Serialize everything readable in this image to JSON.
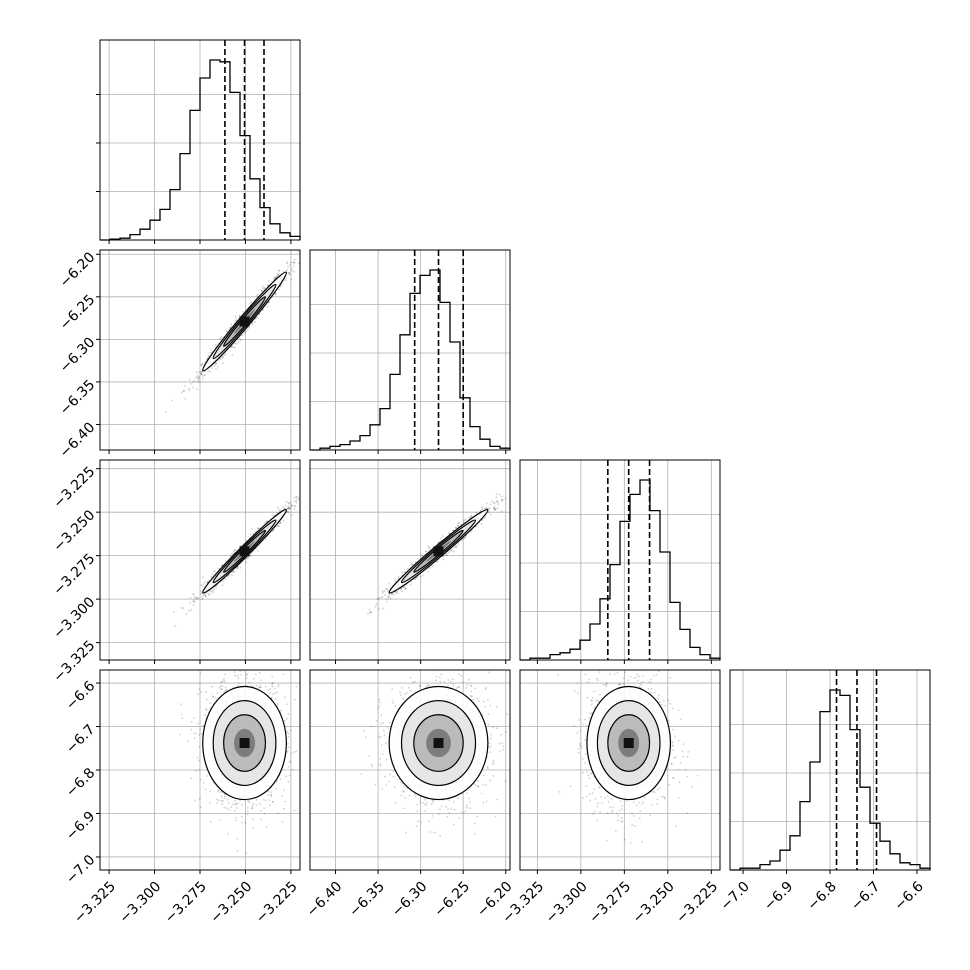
{
  "chart_data": {
    "type": "corner",
    "title": "",
    "parameters": [
      "",
      "",
      "",
      ""
    ],
    "grid": true,
    "colors": {
      "line": "#000000",
      "grid": "#b0b0b0",
      "density": "#000000"
    },
    "ranges": [
      [
        -3.33,
        -3.22
      ],
      [
        -6.43,
        -6.195
      ],
      [
        -3.335,
        -3.22
      ],
      [
        -7.03,
        -6.57
      ]
    ],
    "ticks": [
      {
        "values": [
          -3.325,
          -3.3,
          -3.275,
          -3.25,
          -3.225
        ],
        "labels": [
          "−3.325",
          "−3.300",
          "−3.275",
          "−3.250",
          "−3.225"
        ]
      },
      {
        "values": [
          -6.4,
          -6.35,
          -6.3,
          -6.25,
          -6.2
        ],
        "labels": [
          "−6.40",
          "−6.35",
          "−6.30",
          "−6.25",
          "−6.20"
        ]
      },
      {
        "values": [
          -3.325,
          -3.3,
          -3.275,
          -3.25,
          -3.225
        ],
        "labels": [
          "−3.325",
          "−3.300",
          "−3.275",
          "−3.250",
          "−3.225"
        ]
      },
      {
        "values": [
          -7.0,
          -6.9,
          -6.8,
          -6.7,
          -6.6
        ],
        "labels": [
          "−7.0",
          "−6.9",
          "−6.8",
          "−6.7",
          "−6.6"
        ]
      }
    ],
    "quantiles": [
      [
        -3.2613,
        -3.2505,
        -3.2398
      ],
      [
        -6.307,
        -6.279,
        -6.25
      ],
      [
        -3.2845,
        -3.2725,
        -3.2605
      ],
      [
        -6.785,
        -6.738,
        -6.693
      ]
    ],
    "histograms": [
      [
        0,
        0.005,
        0.01,
        0.03,
        0.06,
        0.11,
        0.17,
        0.28,
        0.48,
        0.72,
        0.9,
        1.0,
        0.99,
        0.82,
        0.58,
        0.34,
        0.18,
        0.09,
        0.04,
        0.02
      ],
      [
        0,
        0.01,
        0.02,
        0.03,
        0.05,
        0.08,
        0.14,
        0.23,
        0.42,
        0.64,
        0.87,
        0.97,
        1.0,
        0.82,
        0.6,
        0.29,
        0.13,
        0.06,
        0.02,
        0.01
      ],
      [
        0,
        0.01,
        0.01,
        0.03,
        0.04,
        0.06,
        0.11,
        0.2,
        0.34,
        0.53,
        0.77,
        0.92,
        1.0,
        0.83,
        0.6,
        0.32,
        0.17,
        0.07,
        0.03,
        0.01
      ],
      [
        0,
        0.01,
        0.01,
        0.03,
        0.05,
        0.11,
        0.19,
        0.38,
        0.6,
        0.88,
        1.0,
        0.97,
        0.78,
        0.46,
        0.26,
        0.16,
        0.09,
        0.04,
        0.03,
        0.01
      ]
    ],
    "joint": [
      {
        "row": 1,
        "col": 0,
        "center": [
          -3.2505,
          -6.279
        ],
        "sd": [
          0.0115,
          0.029
        ],
        "corr": 0.985
      },
      {
        "row": 2,
        "col": 0,
        "center": [
          -3.2505,
          -3.2725
        ],
        "sd": [
          0.0115,
          0.012
        ],
        "corr": 0.985
      },
      {
        "row": 2,
        "col": 1,
        "center": [
          -6.279,
          -3.2725
        ],
        "sd": [
          0.029,
          0.012
        ],
        "corr": 0.985
      },
      {
        "row": 3,
        "col": 0,
        "center": [
          -3.2505,
          -6.738
        ],
        "sd": [
          0.0115,
          0.065
        ],
        "corr": 0.0
      },
      {
        "row": 3,
        "col": 1,
        "center": [
          -6.279,
          -6.738
        ],
        "sd": [
          0.029,
          0.065
        ],
        "corr": 0.0
      },
      {
        "row": 3,
        "col": 2,
        "center": [
          -3.2725,
          -6.738
        ],
        "sd": [
          0.012,
          0.065
        ],
        "corr": 0.0
      }
    ]
  }
}
